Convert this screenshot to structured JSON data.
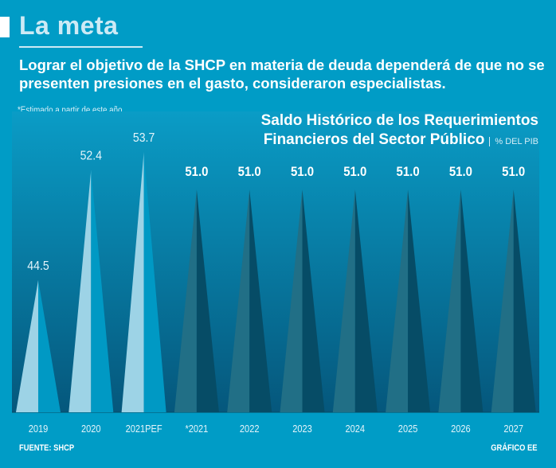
{
  "header": {
    "title": "La meta",
    "subtitle": "Lograr el objetivo de la SHCP en materia de deuda dependerá de que no se presenten presiones en el gasto, consideraron especialistas.",
    "note": "*Estimado a partir de este año."
  },
  "chart_data": {
    "type": "bar",
    "title": "Saldo Histórico de los Requerimientos Financieros del Sector Público",
    "title_line1": "Saldo Histórico de los Requerimientos",
    "title_line2": "Financieros del Sector Público",
    "unit": "% DEL PIB",
    "categories": [
      "2019",
      "2020",
      "2021PEF",
      "*2021",
      "2022",
      "2023",
      "2024",
      "2025",
      "2026",
      "2027"
    ],
    "values": [
      44.5,
      52.4,
      53.7,
      51.0,
      51.0,
      51.0,
      51.0,
      51.0,
      51.0,
      51.0
    ],
    "labels": [
      "44.5",
      "52.4",
      "53.7",
      "51.0",
      "51.0",
      "51.0",
      "51.0",
      "51.0",
      "51.0",
      "51.0"
    ],
    "estimated": [
      false,
      false,
      false,
      true,
      true,
      true,
      true,
      true,
      true,
      true
    ],
    "ylim": [
      35,
      56
    ],
    "grid": false,
    "colors": {
      "actual_left": "#9dd3e6",
      "actual_right": "#0099c4",
      "estimated_left": "#216f86",
      "estimated_right": "#064c66",
      "plot_top": "#0a9cc6",
      "plot_bottom": "#05577c"
    }
  },
  "footer": {
    "source": "FUENTE: SHCP",
    "credit": "GRÁFICO EE"
  }
}
